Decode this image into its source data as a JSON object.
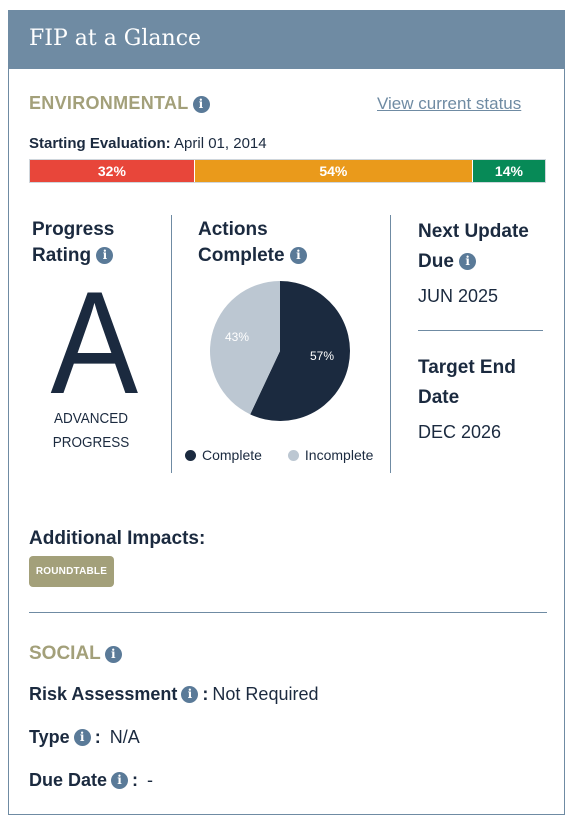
{
  "header": {
    "title": "FIP at a Glance"
  },
  "environmental": {
    "heading": "ENVIRONMENTAL",
    "view_link": "View current status",
    "starting_evaluation_label": "Starting Evaluation:",
    "starting_evaluation_date": "April 01, 2014",
    "progress_bar": [
      {
        "label": "32%",
        "value": 32,
        "color": "#e8463a"
      },
      {
        "label": "54%",
        "value": 54,
        "color": "#ea9a1b"
      },
      {
        "label": "14%",
        "value": 14,
        "color": "#078a57"
      }
    ],
    "progress_rating": {
      "title_line1": "Progress",
      "title_line2": "Rating",
      "grade": "A",
      "desc_line1": "ADVANCED",
      "desc_line2": "PROGRESS"
    },
    "actions_complete": {
      "title_line1": "Actions",
      "title_line2": "Complete",
      "complete_label": "57%",
      "incomplete_label": "43%",
      "complete_value": 57,
      "incomplete_value": 43,
      "complete_color": "#1b2a3f",
      "incomplete_color": "#bcc7d2",
      "legend_complete": "Complete",
      "legend_incomplete": "Incomplete"
    },
    "next_update": {
      "title_line1": "Next Update",
      "title_line2": "Due",
      "value": "JUN 2025"
    },
    "target_end": {
      "title_line1": "Target End",
      "title_line2": "Date",
      "value": "DEC 2026"
    },
    "additional_impacts_label": "Additional Impacts:",
    "impact_tag": "ROUNDTABLE"
  },
  "social": {
    "heading": "SOCIAL",
    "risk_assessment_label": "Risk Assessment",
    "risk_assessment_value": "Not Required",
    "type_label": "Type",
    "type_value": "N/A",
    "due_date_label": "Due Date",
    "due_date_value": "-"
  },
  "icons": {
    "info": "info-icon"
  }
}
